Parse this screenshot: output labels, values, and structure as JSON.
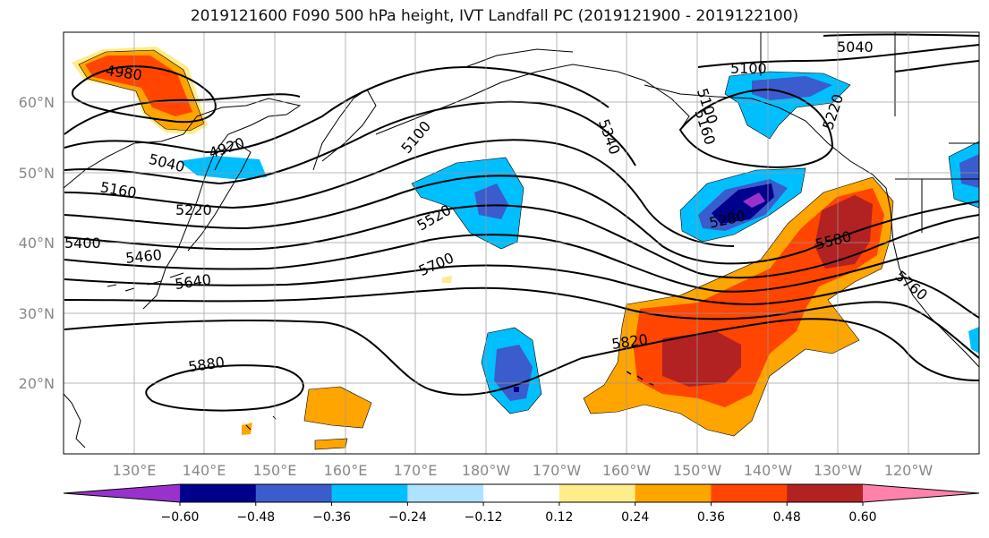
{
  "title": "2019121600 F090 500 hPa height, IVT Landfall PC (2019121900 - 2019122100)",
  "lat_labels": [
    "60°N",
    "50°N",
    "40°N",
    "30°N",
    "20°N"
  ],
  "lon_labels": [
    "130°E",
    "140°E",
    "150°E",
    "160°E",
    "170°E",
    "180°W",
    "170°W",
    "160°W",
    "150°W",
    "140°W",
    "130°W",
    "120°W"
  ],
  "contour_labels": [
    "4980",
    "5040",
    "5100",
    "4920",
    "5040",
    "5160",
    "5220",
    "5400",
    "5460",
    "5640",
    "5100",
    "5340",
    "5520",
    "5700",
    "5100",
    "5160",
    "5220",
    "5280",
    "5580",
    "5760",
    "5820",
    "5880"
  ],
  "colorbar": {
    "ticks": [
      "−0.60",
      "−0.48",
      "−0.36",
      "−0.24",
      "−0.12",
      "0.12",
      "0.24",
      "0.36",
      "0.48",
      "0.60"
    ],
    "colors": [
      "#9932cc",
      "#00008b",
      "#3a5ccc",
      "#00bfff",
      "#b0e2ff",
      "#ffffff",
      "#ffec8b",
      "#ffa500",
      "#ff4500",
      "#b22222",
      "#ff82ab"
    ]
  }
}
